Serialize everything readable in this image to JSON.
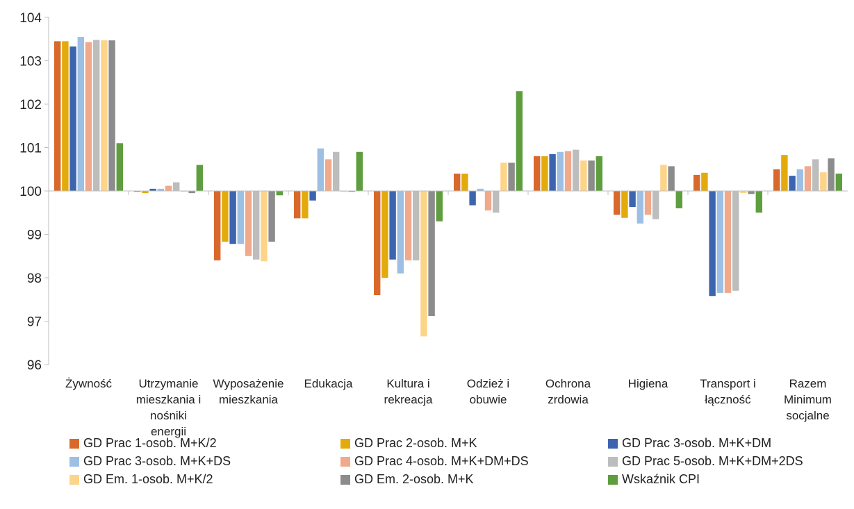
{
  "chart_data": {
    "type": "bar",
    "title": "",
    "xlabel": "",
    "ylabel": "",
    "ylim": [
      96,
      104
    ],
    "yticks": [
      96,
      97,
      98,
      99,
      100,
      101,
      102,
      103,
      104
    ],
    "baseline": 100,
    "grid": false,
    "legend_position": "bottom",
    "categories": [
      [
        "Żywność"
      ],
      [
        "Utrzymanie",
        "mieszkania i",
        "nośniki",
        "energii"
      ],
      [
        "Wyposażenie",
        "mieszkania"
      ],
      [
        "Edukacja"
      ],
      [
        "Kultura i",
        "rekreacja"
      ],
      [
        "Odzież i",
        "obuwie"
      ],
      [
        "Ochrona",
        "zrdowia"
      ],
      [
        "Higiena"
      ],
      [
        "Transport i",
        "łączność"
      ],
      [
        "Razem",
        "Minimum",
        "socjalne"
      ]
    ],
    "series": [
      {
        "name": "GD Prac 1-osob. M+K/2",
        "color": "#D9692B",
        "values": [
          103.45,
          100.0,
          98.4,
          99.37,
          97.6,
          100.4,
          100.8,
          99.45,
          100.37,
          100.5
        ]
      },
      {
        "name": "GD Prac 2-osob. M+K",
        "color": "#E3AA0C",
        "values": [
          103.45,
          99.95,
          98.83,
          99.37,
          98.0,
          100.4,
          100.8,
          99.38,
          100.42,
          100.83
        ]
      },
      {
        "name": "GD Prac 3-osob. M+K+DM",
        "color": "#3D64AE",
        "values": [
          103.33,
          100.05,
          98.78,
          99.78,
          98.42,
          99.67,
          100.85,
          99.63,
          97.58,
          100.35
        ]
      },
      {
        "name": "GD Prac 3-osob. M+K+DS",
        "color": "#9DBFE3",
        "values": [
          103.55,
          100.05,
          98.78,
          100.98,
          98.1,
          100.05,
          100.9,
          99.25,
          97.65,
          100.5
        ]
      },
      {
        "name": "GD Prac 4-osob. M+K+DM+DS",
        "color": "#F0A98B",
        "values": [
          103.43,
          100.12,
          98.5,
          100.73,
          98.4,
          99.55,
          100.92,
          99.45,
          97.65,
          100.57
        ]
      },
      {
        "name": "GD Prac 5-osob. M+K+DM+2DS",
        "color": "#BDBDBD",
        "values": [
          103.48,
          100.2,
          98.42,
          100.9,
          98.4,
          99.5,
          100.95,
          99.35,
          97.7,
          100.73
        ]
      },
      {
        "name": "GD Em. 1-osob. M+K/2",
        "color": "#FDD488",
        "values": [
          103.47,
          100.0,
          98.38,
          100.0,
          96.65,
          100.65,
          100.7,
          100.6,
          99.95,
          100.43
        ]
      },
      {
        "name": "GD Em. 2-osob. M+K",
        "color": "#8C8C8C",
        "values": [
          103.47,
          99.95,
          98.83,
          100.0,
          97.12,
          100.65,
          100.7,
          100.57,
          99.93,
          100.75
        ]
      },
      {
        "name": "Wskaźnik CPI",
        "color": "#5F9E3E",
        "values": [
          101.1,
          100.6,
          99.9,
          100.9,
          99.3,
          102.3,
          100.8,
          99.6,
          99.5,
          100.4
        ]
      }
    ]
  }
}
